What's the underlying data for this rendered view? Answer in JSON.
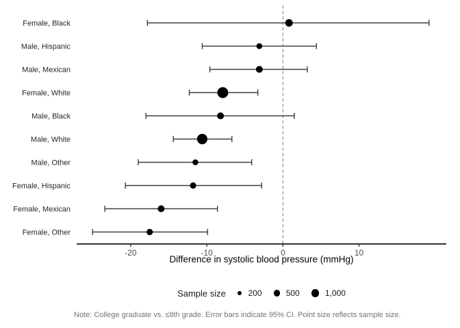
{
  "chart_data": {
    "type": "scatter",
    "subtype": "forest-plot-dot-with-95ci-error-bars",
    "title": "",
    "xlabel": "Difference in systolic blood pressure (mmHg)",
    "ylabel": "",
    "xlim": [
      -27.1,
      21.5
    ],
    "xticks": [
      -20,
      -10,
      0,
      10
    ],
    "xtick_labels": [
      "-20",
      "-10",
      "0",
      "10"
    ],
    "reference_line_x": 0,
    "grid": false,
    "legend_position": "bottom",
    "categories": [
      "Female, Black",
      "Male, Hispanic",
      "Male, Mexican",
      "Female, White",
      "Male, Black",
      "Male, White",
      "Male, Other",
      "Female, Hispanic",
      "Female, Mexican",
      "Female, Other"
    ],
    "points": [
      {
        "label": "Female, Black",
        "estimate": 0.8,
        "ci_low": -17.8,
        "ci_high": 19.2,
        "dot_radius_px": 5.5
      },
      {
        "label": "Male, Hispanic",
        "estimate": -3.1,
        "ci_low": -10.6,
        "ci_high": 4.4,
        "dot_radius_px": 4.3
      },
      {
        "label": "Male, Mexican",
        "estimate": -3.1,
        "ci_low": -9.6,
        "ci_high": 3.2,
        "dot_radius_px": 5.0
      },
      {
        "label": "Female, White",
        "estimate": -7.9,
        "ci_low": -12.3,
        "ci_high": -3.3,
        "dot_radius_px": 8.0
      },
      {
        "label": "Male, Black",
        "estimate": -8.2,
        "ci_low": -18.0,
        "ci_high": 1.5,
        "dot_radius_px": 5.0
      },
      {
        "label": "Male, White",
        "estimate": -10.6,
        "ci_low": -14.4,
        "ci_high": -6.7,
        "dot_radius_px": 7.6
      },
      {
        "label": "Male, Other",
        "estimate": -11.5,
        "ci_low": -19.0,
        "ci_high": -4.1,
        "dot_radius_px": 4.3
      },
      {
        "label": "Female, Hispanic",
        "estimate": -11.8,
        "ci_low": -20.7,
        "ci_high": -2.8,
        "dot_radius_px": 4.6
      },
      {
        "label": "Female, Mexican",
        "estimate": -16.0,
        "ci_low": -23.4,
        "ci_high": -8.6,
        "dot_radius_px": 5.0
      },
      {
        "label": "Female, Other",
        "estimate": -17.5,
        "ci_low": -25.0,
        "ci_high": -9.9,
        "dot_radius_px": 4.6
      }
    ],
    "legend": {
      "title": "Sample size",
      "items": [
        {
          "label": "200",
          "dot_radius_px": 3.3
        },
        {
          "label": "500",
          "dot_radius_px": 4.6
        },
        {
          "label": "1,000",
          "dot_radius_px": 5.6
        }
      ]
    },
    "note": "Note: College graduate vs. ≤8th grade. Error bars indicate 95% CI. Point size reflects sample size."
  },
  "colors": {
    "background": "#ffffff",
    "point": "#000000",
    "error_bar": "#3f3f3f",
    "axis_line": "#141414",
    "reference_line": "#8c8c8c",
    "tick_mark": "#333333",
    "tick_label": "#4d4d4d",
    "category_label": "#262626",
    "axis_title": "#000000",
    "legend_text": "#1a1a1a",
    "note_text": "#737373"
  }
}
